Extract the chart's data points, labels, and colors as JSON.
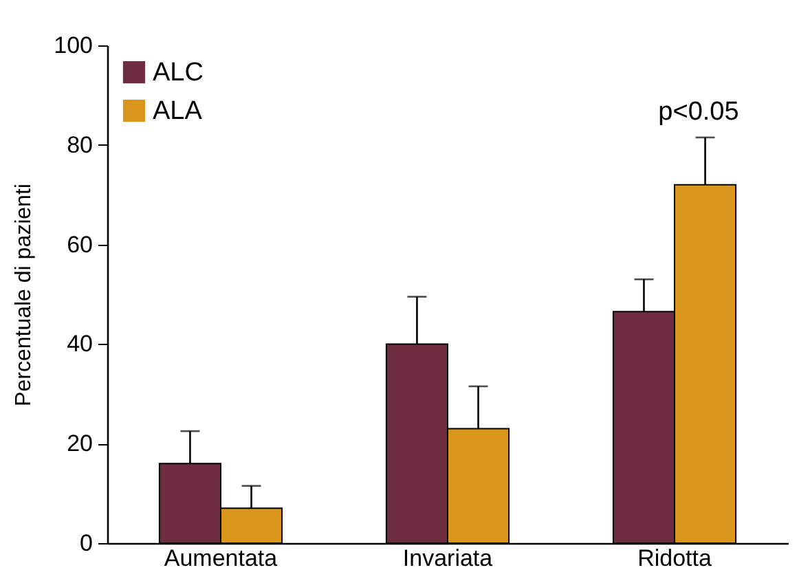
{
  "chart_data": {
    "type": "bar",
    "ylabel": "Percentuale di pazienti",
    "categories": [
      "Aumentata",
      "Invariata",
      "Ridotta"
    ],
    "series": [
      {
        "name": "ALC",
        "color": "#6e2d3e",
        "values": [
          16,
          40,
          46.5
        ],
        "errors": [
          [
            16,
            22.5
          ],
          [
            40,
            49.5
          ],
          [
            46.5,
            53
          ]
        ]
      },
      {
        "name": "ALA",
        "color": "#d9961c",
        "values": [
          7,
          23,
          72
        ],
        "errors": [
          [
            7,
            11.5
          ],
          [
            23,
            31.5
          ],
          [
            72,
            81.5
          ]
        ]
      }
    ],
    "ylim": [
      0,
      100
    ],
    "yticks": [
      0,
      20,
      40,
      60,
      80,
      100
    ],
    "grid": false,
    "legend": "top left",
    "annotations": [
      "p<0.05"
    ]
  }
}
